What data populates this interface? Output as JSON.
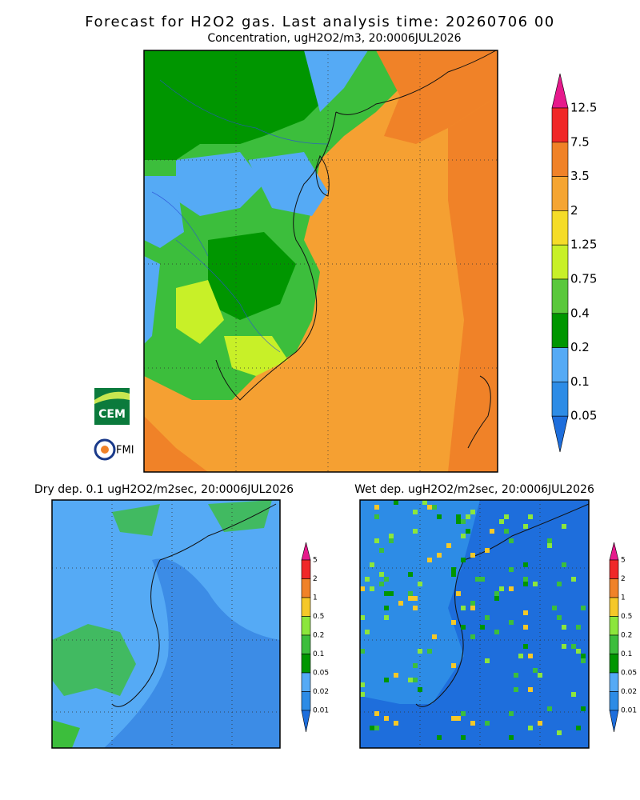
{
  "header": {
    "title": "Forecast for H2O2 gas. Last analysis time: 20260706 00"
  },
  "main": {
    "subtitle": "Concentration, ugH2O2/m3, 20:0006JUL2026",
    "colorbar": {
      "labels": [
        "12.5",
        "7.5",
        "3.5",
        "2",
        "1.25",
        "0.75",
        "0.4",
        "0.2",
        "0.1",
        "0.05"
      ],
      "colors": [
        "#e6198c",
        "#f02828",
        "#f08228",
        "#f5a532",
        "#f5dc28",
        "#c8f028",
        "#5ac83c",
        "#009600",
        "#55aaf5",
        "#2d8ce6",
        "#1e6edc"
      ]
    }
  },
  "logos": {
    "cem": "CEM",
    "fmi": "FMI"
  },
  "dry": {
    "title": "Dry dep. 0.1 ugH2O2/m2sec, 20:0006JUL2026",
    "colorbar": {
      "labels": [
        "5",
        "2",
        "1",
        "0.5",
        "0.2",
        "0.1",
        "0.05",
        "0.02",
        "0.01"
      ],
      "colors": [
        "#e6198c",
        "#f02828",
        "#f08228",
        "#f5c828",
        "#8ce63c",
        "#3cbe3c",
        "#009600",
        "#55aaf5",
        "#2d8ce6",
        "#1e6edc"
      ]
    }
  },
  "wet": {
    "title": "Wet dep. ugH2O2/m2sec, 20:0006JUL2026",
    "colorbar": {
      "labels": [
        "5",
        "2",
        "1",
        "0.5",
        "0.2",
        "0.1",
        "0.05",
        "0.02",
        "0.01"
      ],
      "colors": [
        "#e6198c",
        "#f02828",
        "#f08228",
        "#f5c828",
        "#8ce63c",
        "#3cbe3c",
        "#009600",
        "#55aaf5",
        "#2d8ce6",
        "#1e6edc"
      ]
    }
  }
}
